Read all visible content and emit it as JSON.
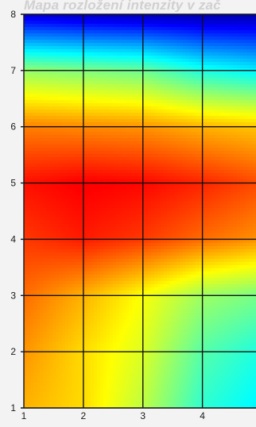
{
  "chart_data": {
    "type": "heatmap",
    "title": "Mapa rozložení intenzity v zač",
    "xlabel": "",
    "ylabel": "",
    "x_ticks": [
      "1",
      "2",
      "3",
      "4"
    ],
    "y_ticks": [
      "1",
      "2",
      "3",
      "4",
      "5",
      "6",
      "7",
      "8"
    ],
    "xlim": [
      1,
      4.9
    ],
    "ylim": [
      1,
      8
    ],
    "grid": true,
    "colormap": "jet",
    "x": [
      1,
      2,
      3,
      4,
      5
    ],
    "y": [
      1,
      2,
      3,
      4,
      5,
      6,
      7,
      8
    ],
    "values": [
      [
        0.7,
        0.66,
        0.56,
        0.42,
        0.36
      ],
      [
        0.73,
        0.66,
        0.59,
        0.46,
        0.4
      ],
      [
        0.77,
        0.7,
        0.62,
        0.53,
        0.49
      ],
      [
        0.82,
        0.85,
        0.82,
        0.77,
        0.73
      ],
      [
        0.86,
        0.88,
        0.87,
        0.84,
        0.8
      ],
      [
        0.75,
        0.74,
        0.73,
        0.7,
        0.68
      ],
      [
        0.52,
        0.5,
        0.48,
        0.4,
        0.36
      ],
      [
        0.08,
        0.06,
        0.05,
        0.04,
        0.04
      ]
    ]
  }
}
